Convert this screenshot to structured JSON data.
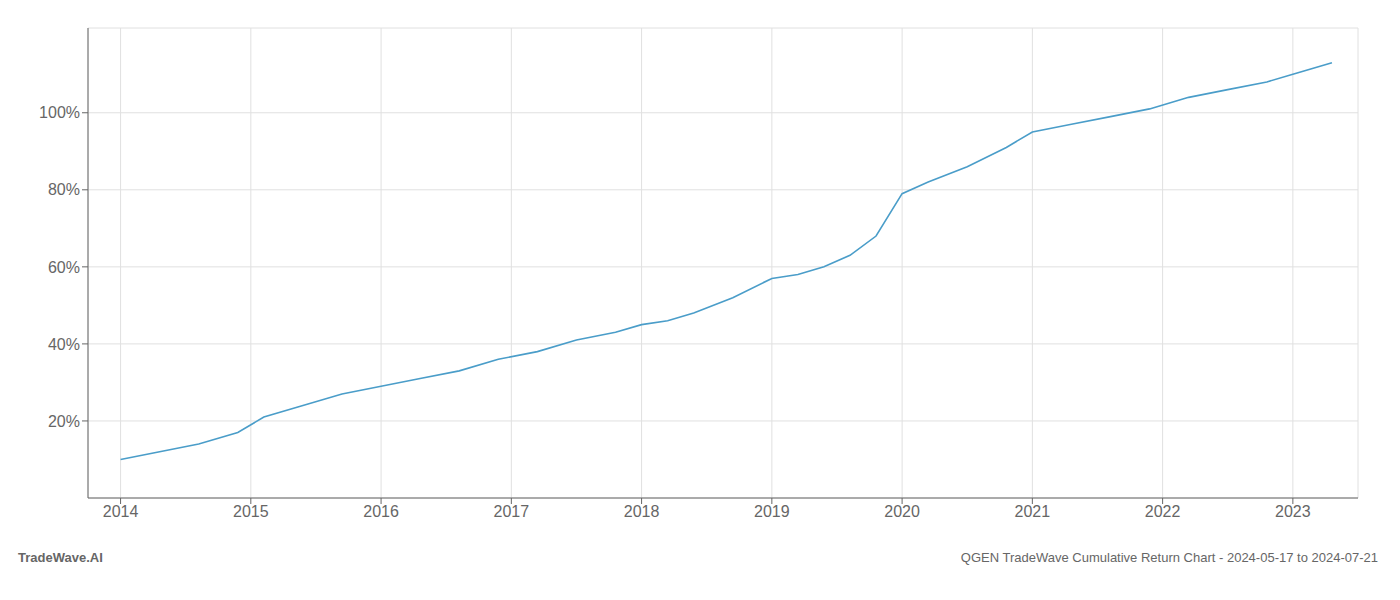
{
  "chart_data": {
    "type": "line",
    "title": "QGEN TradeWave Cumulative Return Chart - 2024-05-17 to 2024-07-21",
    "annotations": [
      "TradeWave.AI"
    ],
    "x": [
      2014.0,
      2014.3,
      2014.6,
      2014.9,
      2015.1,
      2015.4,
      2015.7,
      2016.0,
      2016.3,
      2016.6,
      2016.9,
      2017.2,
      2017.5,
      2017.8,
      2018.0,
      2018.2,
      2018.4,
      2018.7,
      2019.0,
      2019.2,
      2019.4,
      2019.6,
      2019.8,
      2020.0,
      2020.2,
      2020.5,
      2020.8,
      2021.0,
      2021.3,
      2021.6,
      2021.9,
      2022.2,
      2022.5,
      2022.8,
      2023.0,
      2023.3
    ],
    "values": [
      10,
      12,
      14,
      17,
      21,
      24,
      27,
      29,
      31,
      33,
      36,
      38,
      41,
      43,
      45,
      46,
      48,
      52,
      57,
      58,
      60,
      63,
      68,
      79,
      82,
      86,
      91,
      95,
      97,
      99,
      101,
      104,
      106,
      108,
      110,
      113
    ],
    "color": "#4a9dc9",
    "xlim": [
      2013.75,
      2023.5
    ],
    "ylim": [
      0,
      122
    ],
    "xticks": [
      2014,
      2015,
      2016,
      2017,
      2018,
      2019,
      2020,
      2021,
      2022,
      2023
    ],
    "yticks": [
      {
        "value": 20,
        "label": "20%"
      },
      {
        "value": 40,
        "label": "40%"
      },
      {
        "value": 60,
        "label": "60%"
      },
      {
        "value": 80,
        "label": "80%"
      },
      {
        "value": 100,
        "label": "100%"
      }
    ],
    "grid": true
  }
}
